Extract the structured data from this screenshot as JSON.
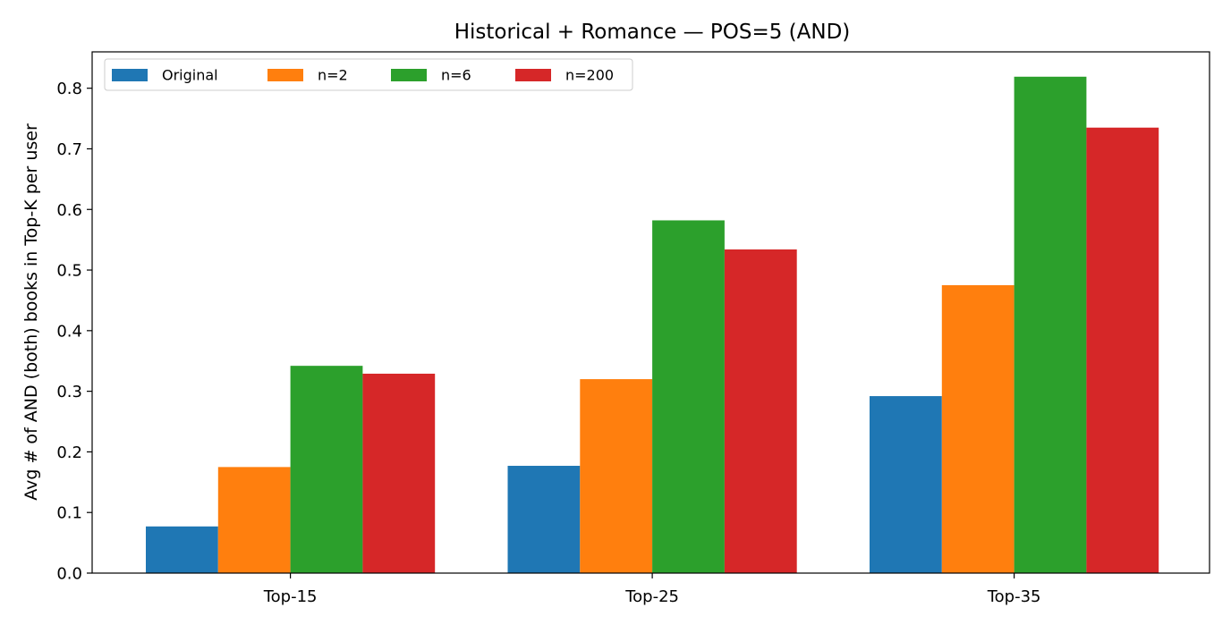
{
  "chart_data": {
    "type": "bar",
    "title": "Historical + Romance — POS=5 (AND)",
    "xlabel": "",
    "ylabel": "Avg # of AND (both) books in Top-K per user",
    "categories": [
      "Top-15",
      "Top-25",
      "Top-35"
    ],
    "series": [
      {
        "name": "Original",
        "color": "#1f77b4",
        "values": [
          0.077,
          0.177,
          0.292
        ]
      },
      {
        "name": "n=2",
        "color": "#ff7f0e",
        "values": [
          0.175,
          0.32,
          0.475
        ]
      },
      {
        "name": "n=6",
        "color": "#2ca02c",
        "values": [
          0.342,
          0.582,
          0.819
        ]
      },
      {
        "name": "n=200",
        "color": "#d62728",
        "values": [
          0.329,
          0.534,
          0.735
        ]
      }
    ],
    "ylim": [
      0,
      0.86
    ],
    "yticks": [
      "0.0",
      "0.1",
      "0.2",
      "0.3",
      "0.4",
      "0.5",
      "0.6",
      "0.7",
      "0.8"
    ],
    "grid": false,
    "legend_position": "top-left"
  }
}
